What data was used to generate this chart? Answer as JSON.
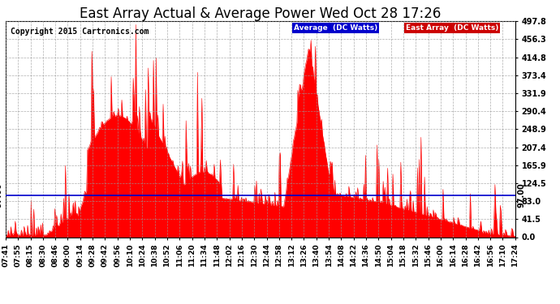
{
  "title": "East Array Actual & Average Power Wed Oct 28 17:26",
  "copyright": "Copyright 2015 Cartronics.com",
  "average_value": 97.0,
  "ylim": [
    0.0,
    497.8
  ],
  "yticks": [
    0.0,
    41.5,
    83.0,
    124.5,
    165.9,
    207.4,
    248.9,
    290.4,
    331.9,
    373.4,
    414.8,
    456.3,
    497.8
  ],
  "background_color": "#ffffff",
  "plot_bg_color": "#ffffff",
  "grid_color": "#999999",
  "fill_color": "#ff0000",
  "line_color": "#ff0000",
  "avg_line_color": "#0000cc",
  "legend_labels": [
    "Average  (DC Watts)",
    "East Array  (DC Watts)"
  ],
  "legend_bg_colors": [
    "#0000cc",
    "#cc0000"
  ],
  "x_tick_labels": [
    "07:41",
    "07:55",
    "08:15",
    "08:30",
    "08:46",
    "09:00",
    "09:14",
    "09:28",
    "09:42",
    "09:56",
    "10:10",
    "10:24",
    "10:38",
    "10:52",
    "11:06",
    "11:20",
    "11:34",
    "11:48",
    "12:02",
    "12:16",
    "12:30",
    "12:44",
    "12:58",
    "13:12",
    "13:26",
    "13:40",
    "13:54",
    "14:08",
    "14:22",
    "14:36",
    "14:50",
    "15:04",
    "15:18",
    "15:32",
    "15:46",
    "16:00",
    "16:14",
    "16:28",
    "16:42",
    "16:56",
    "17:10",
    "17:24"
  ],
  "title_fontsize": 12,
  "axis_fontsize": 7,
  "copyright_fontsize": 7,
  "n_points": 580
}
